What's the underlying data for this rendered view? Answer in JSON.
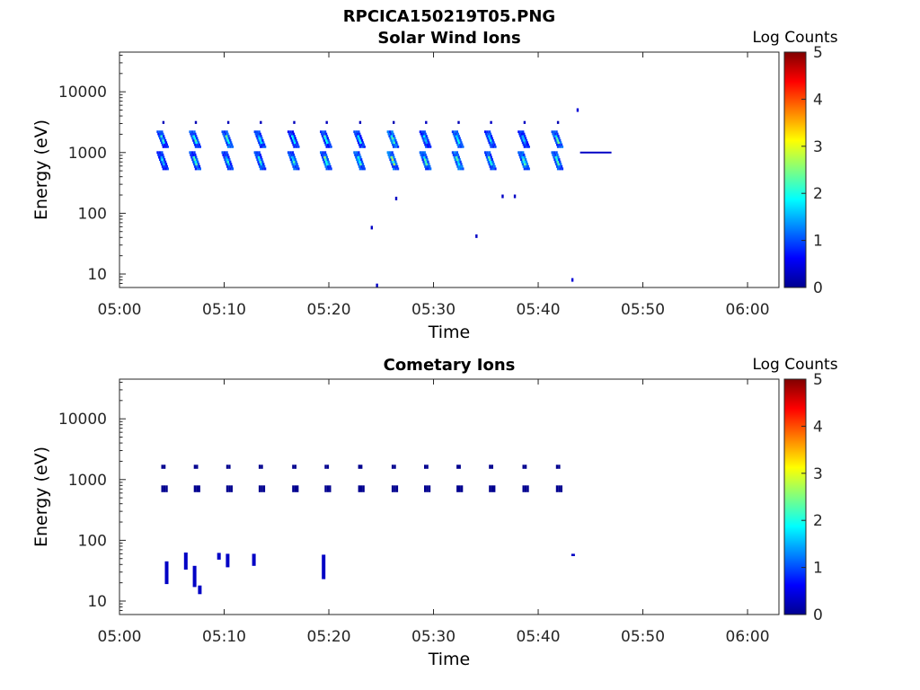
{
  "figure_title": "RPCICA150219T05.PNG",
  "colors": {
    "axis": "#262626",
    "frame": "#000000",
    "point": "#00008f"
  },
  "colormap": "jet",
  "chart_data": [
    {
      "type": "heatmap",
      "title": "Solar Wind Ions",
      "xlabel": "Time",
      "ylabel": "Energy (eV)",
      "colorbar_label": "Log Counts",
      "colorbar_range": [
        0,
        5
      ],
      "colorbar_ticks": [
        "0",
        "1",
        "2",
        "3",
        "4",
        "5"
      ],
      "x_range": [
        "05:00",
        "06:03"
      ],
      "x_ticks": [
        "05:00",
        "05:10",
        "05:20",
        "05:30",
        "05:40",
        "05:50",
        "06:00"
      ],
      "y_scale": "log",
      "y_range": [
        6,
        45000
      ],
      "y_ticks": [
        "10",
        "100",
        "1000",
        "10000"
      ],
      "grid": false,
      "sweeps_minutes": [
        4.3,
        7.4,
        10.5,
        13.6,
        16.8,
        19.9,
        23.1,
        26.3,
        29.4,
        32.5,
        35.6,
        38.8,
        42.0
      ],
      "point_counts": [
        {
          "time": "05:24:30",
          "energy": 6.5,
          "log_counts": 0.3
        },
        {
          "time": "05:24:00",
          "energy": 58,
          "log_counts": 0.3
        },
        {
          "time": "05:26:20",
          "energy": 175,
          "log_counts": 0.3
        },
        {
          "time": "05:34:00",
          "energy": 42,
          "log_counts": 0.3
        },
        {
          "time": "05:36:30",
          "energy": 190,
          "log_counts": 0.3
        },
        {
          "time": "05:37:40",
          "energy": 190,
          "log_counts": 0.3
        },
        {
          "time": "05:43:10",
          "energy": 8,
          "log_counts": 0.4
        },
        {
          "time": "05:43:40",
          "energy": 5000,
          "log_counts": 0.4
        }
      ],
      "line_segment": {
        "t_start": "05:44",
        "t_end": "05:47",
        "energy": 1000,
        "log_counts": 0.3
      }
    },
    {
      "type": "heatmap",
      "title": "Cometary Ions",
      "xlabel": "Time",
      "ylabel": "Energy (eV)",
      "colorbar_label": "Log Counts",
      "colorbar_range": [
        0,
        5
      ],
      "colorbar_ticks": [
        "0",
        "1",
        "2",
        "3",
        "4",
        "5"
      ],
      "x_range": [
        "05:00",
        "06:03"
      ],
      "x_ticks": [
        "05:00",
        "05:10",
        "05:20",
        "05:30",
        "05:40",
        "05:50",
        "06:00"
      ],
      "y_scale": "log",
      "y_range": [
        6,
        45000
      ],
      "y_ticks": [
        "10",
        "100",
        "1000",
        "10000"
      ],
      "grid": false,
      "sweeps_minutes": [
        4.3,
        7.4,
        10.5,
        13.6,
        16.8,
        19.9,
        23.1,
        26.3,
        29.4,
        32.5,
        35.6,
        38.8,
        42.0
      ],
      "low_energy_cells": [
        {
          "time": "05:04:20",
          "energy_range": [
            19,
            45
          ],
          "log_counts": 0.3
        },
        {
          "time": "05:06:10",
          "energy_range": [
            33,
            63
          ],
          "log_counts": 0.3
        },
        {
          "time": "05:07:00",
          "energy_range": [
            17,
            38
          ],
          "log_counts": 0.3
        },
        {
          "time": "05:07:30",
          "energy_range": [
            13,
            18
          ],
          "log_counts": 0.3
        },
        {
          "time": "05:09:20",
          "energy_range": [
            48,
            62
          ],
          "log_counts": 0.3
        },
        {
          "time": "05:10:10",
          "energy_range": [
            36,
            60
          ],
          "log_counts": 0.3
        },
        {
          "time": "05:12:40",
          "energy_range": [
            38,
            60
          ],
          "log_counts": 0.3
        },
        {
          "time": "05:19:20",
          "energy_range": [
            23,
            58
          ],
          "log_counts": 0.3
        },
        {
          "time": "05:43:10",
          "energy_range": [
            55,
            60
          ],
          "log_counts": 0.3
        }
      ]
    }
  ]
}
